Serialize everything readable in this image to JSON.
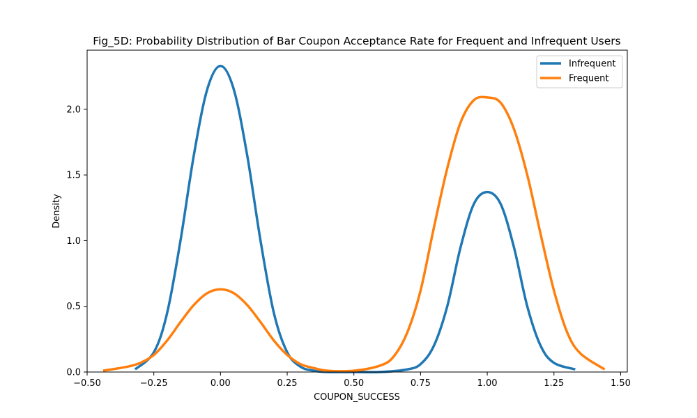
{
  "chart_data": {
    "type": "line",
    "title": "Fig_5D: Probability Distribution of Bar Coupon Acceptance Rate for Frequent and Infrequent Users",
    "xlabel": "COUPON_SUCCESS",
    "ylabel": "Density",
    "xlim": [
      -0.5,
      1.525
    ],
    "ylim": [
      0.0,
      2.45
    ],
    "xticks": [
      -0.5,
      -0.25,
      0.0,
      0.25,
      0.5,
      0.75,
      1.0,
      1.25,
      1.5
    ],
    "xtick_labels": [
      "−0.50",
      "−0.25",
      "0.00",
      "0.25",
      "0.50",
      "0.75",
      "1.00",
      "1.25",
      "1.50"
    ],
    "yticks": [
      0.0,
      0.5,
      1.0,
      1.5,
      2.0
    ],
    "ytick_labels": [
      "0.0",
      "0.5",
      "1.0",
      "1.5",
      "2.0"
    ],
    "grid": false,
    "legend_position": "top-right",
    "series": [
      {
        "name": "Infrequent",
        "color": "#1f77b4",
        "x": [
          -0.32,
          -0.25,
          -0.2,
          -0.15,
          -0.1,
          -0.05,
          0.0,
          0.05,
          0.1,
          0.15,
          0.2,
          0.25,
          0.3,
          0.35,
          0.4,
          0.5,
          0.6,
          0.7,
          0.75,
          0.8,
          0.85,
          0.9,
          0.95,
          1.0,
          1.05,
          1.1,
          1.15,
          1.2,
          1.25,
          1.33
        ],
        "y": [
          0.02,
          0.15,
          0.45,
          1.0,
          1.65,
          2.15,
          2.33,
          2.15,
          1.65,
          1.0,
          0.45,
          0.15,
          0.04,
          0.01,
          0.0,
          0.0,
          0.0,
          0.02,
          0.06,
          0.2,
          0.5,
          0.95,
          1.28,
          1.37,
          1.28,
          0.95,
          0.5,
          0.2,
          0.07,
          0.02
        ]
      },
      {
        "name": "Frequent",
        "color": "#ff7f0e",
        "x": [
          -0.44,
          -0.35,
          -0.3,
          -0.25,
          -0.2,
          -0.15,
          -0.1,
          -0.05,
          0.0,
          0.05,
          0.1,
          0.15,
          0.2,
          0.25,
          0.3,
          0.35,
          0.4,
          0.5,
          0.6,
          0.65,
          0.7,
          0.75,
          0.8,
          0.85,
          0.9,
          0.95,
          1.0,
          1.05,
          1.1,
          1.15,
          1.2,
          1.25,
          1.3,
          1.35,
          1.44
        ],
        "y": [
          0.01,
          0.04,
          0.07,
          0.13,
          0.24,
          0.38,
          0.51,
          0.6,
          0.63,
          0.6,
          0.51,
          0.38,
          0.24,
          0.13,
          0.06,
          0.03,
          0.01,
          0.01,
          0.05,
          0.12,
          0.3,
          0.62,
          1.1,
          1.55,
          1.9,
          2.07,
          2.09,
          2.05,
          1.85,
          1.5,
          1.05,
          0.62,
          0.3,
          0.14,
          0.02
        ]
      }
    ]
  }
}
